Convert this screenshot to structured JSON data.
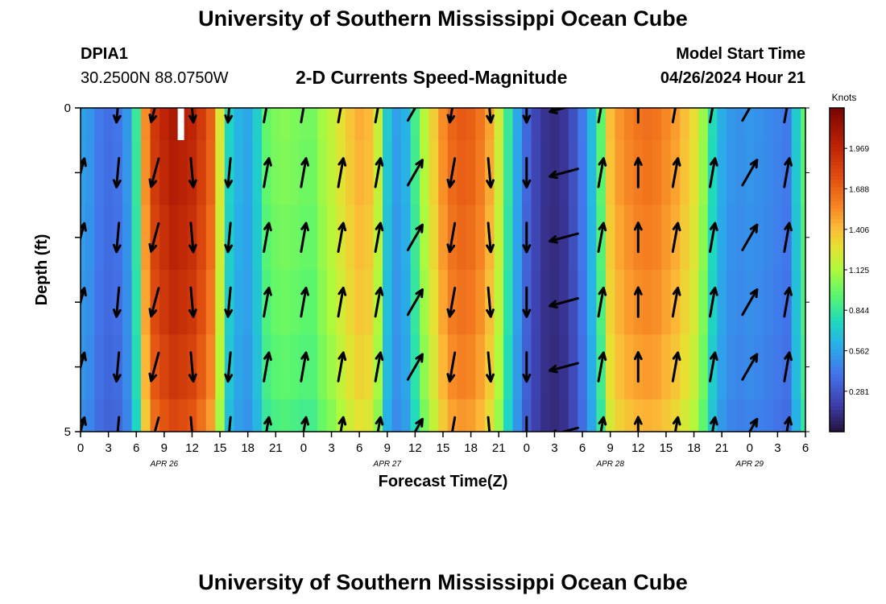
{
  "header": {
    "title": "University of Southern Mississippi Ocean Cube",
    "station_id": "DPIA1",
    "coordinates": "30.2500N  88.0750W",
    "subtitle": "2-D Currents Speed-Magnitude",
    "model_start_label": "Model Start Time",
    "model_start_value": "04/26/2024 Hour 21"
  },
  "footer": {
    "title": "University of Southern Mississippi Ocean Cube"
  },
  "chart_data": {
    "type": "heatmap",
    "title": "2-D Currents Speed-Magnitude",
    "xlabel": "Forecast Time(Z)",
    "ylabel": "Depth (ft)",
    "x_tick_labels": [
      "0",
      "3",
      "6",
      "9",
      "12",
      "15",
      "18",
      "21",
      "0",
      "3",
      "6",
      "9",
      "12",
      "15",
      "18",
      "21",
      "0",
      "3",
      "6",
      "9",
      "12",
      "15",
      "18",
      "21",
      "0",
      "3",
      "6"
    ],
    "date_labels": [
      {
        "text": "APR 26",
        "hour": 9
      },
      {
        "text": "APR 27",
        "hour": 33
      },
      {
        "text": "APR 28",
        "hour": 57
      },
      {
        "text": "APR 29",
        "hour": 72
      }
    ],
    "x_range_hours": [
      0,
      78
    ],
    "ylim": [
      0,
      5
    ],
    "y_tick_labels": [
      "0",
      "5"
    ],
    "colorbar": {
      "label": "Knots",
      "min": 0,
      "max": 2.25,
      "ticks": [
        "1.969",
        "1.688",
        "1.406",
        "1.125",
        "0.844",
        "0.562",
        "0.281"
      ],
      "tick_values": [
        1.969,
        1.688,
        1.406,
        1.125,
        0.844,
        0.562,
        0.281
      ]
    },
    "depth_levels_ft": [
      0,
      1,
      2,
      3,
      4,
      5
    ],
    "time_hours": [
      0,
      1,
      2,
      3,
      4,
      5,
      6,
      7,
      8,
      9,
      10,
      11,
      12,
      13,
      14,
      15,
      16,
      17,
      18,
      19,
      20,
      21,
      22,
      23,
      24,
      25,
      26,
      27,
      28,
      29,
      30,
      31,
      32,
      33,
      34,
      35,
      36,
      37,
      38,
      39,
      40,
      41,
      42,
      43,
      44,
      45,
      46,
      47,
      48,
      49,
      50,
      51,
      52,
      53,
      54,
      55,
      56,
      57,
      58,
      59,
      60,
      61,
      62,
      63,
      64,
      65,
      66,
      67,
      68,
      69,
      70,
      71,
      72,
      73,
      74,
      75,
      76,
      77,
      78
    ],
    "surface_speed_knots": [
      0.56,
      0.52,
      0.42,
      0.38,
      0.4,
      0.52,
      0.85,
      1.55,
      1.88,
      1.98,
      2.05,
      2.02,
      1.98,
      1.86,
      1.7,
      1.25,
      0.75,
      0.62,
      0.58,
      0.72,
      0.96,
      1.02,
      1.04,
      1.02,
      1.0,
      1.0,
      1.1,
      1.18,
      1.28,
      1.38,
      1.45,
      1.42,
      1.2,
      0.7,
      0.55,
      0.62,
      0.88,
      1.15,
      1.35,
      1.55,
      1.68,
      1.72,
      1.7,
      1.62,
      1.48,
      1.22,
      0.85,
      0.58,
      0.35,
      0.22,
      0.14,
      0.12,
      0.15,
      0.26,
      0.42,
      0.65,
      0.95,
      1.4,
      1.52,
      1.58,
      1.62,
      1.64,
      1.62,
      1.56,
      1.5,
      1.4,
      1.3,
      1.08,
      0.78,
      0.6,
      0.52,
      0.5,
      0.52,
      0.5,
      0.48,
      0.45,
      0.42,
      0.7,
      0.95
    ],
    "depth_factor": [
      1.0,
      0.99,
      0.97,
      0.95,
      0.92,
      0.88
    ],
    "vector_times_hours": [
      0,
      4,
      8,
      12,
      16,
      20,
      24,
      28,
      32,
      36,
      40,
      44,
      48,
      52,
      56,
      60,
      64,
      68,
      72,
      76
    ],
    "vector_directions_deg": [
      15,
      185,
      195,
      175,
      185,
      10,
      10,
      10,
      10,
      30,
      190,
      175,
      180,
      255,
      10,
      0,
      10,
      10,
      30,
      10
    ],
    "surface_marker_hour": 10.8
  }
}
